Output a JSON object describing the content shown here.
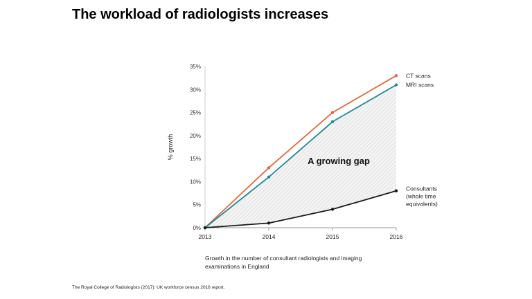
{
  "title": "The workload of radiologists increases",
  "subtitle": "Growth in the number of consultant radiologists and imaging examinations in England",
  "source": "The Royal College of Radiologists (2017): UK workforce census 2016 report.",
  "chart_data": {
    "type": "line",
    "x": [
      "2013",
      "2014",
      "2015",
      "2016"
    ],
    "ylabel": "% growth",
    "xlabel": "",
    "ylim": [
      0,
      35
    ],
    "yticks": [
      "0%",
      "5%",
      "10%",
      "15%",
      "20%",
      "25%",
      "30%",
      "35%"
    ],
    "grid": false,
    "annotation": "A growing gap",
    "series": [
      {
        "name": "CT scans",
        "values": [
          0,
          13,
          25,
          33
        ],
        "color": "#e8643a"
      },
      {
        "name": "MRI scans",
        "values": [
          0,
          11,
          23,
          31
        ],
        "color": "#1e8a9c"
      },
      {
        "name": "Consultants (whole time equivalents)",
        "label_lines": [
          "Consultants",
          "(whole time",
          "equivalents)"
        ],
        "values": [
          0,
          1,
          4,
          8
        ],
        "color": "#1a1a1a"
      }
    ]
  }
}
